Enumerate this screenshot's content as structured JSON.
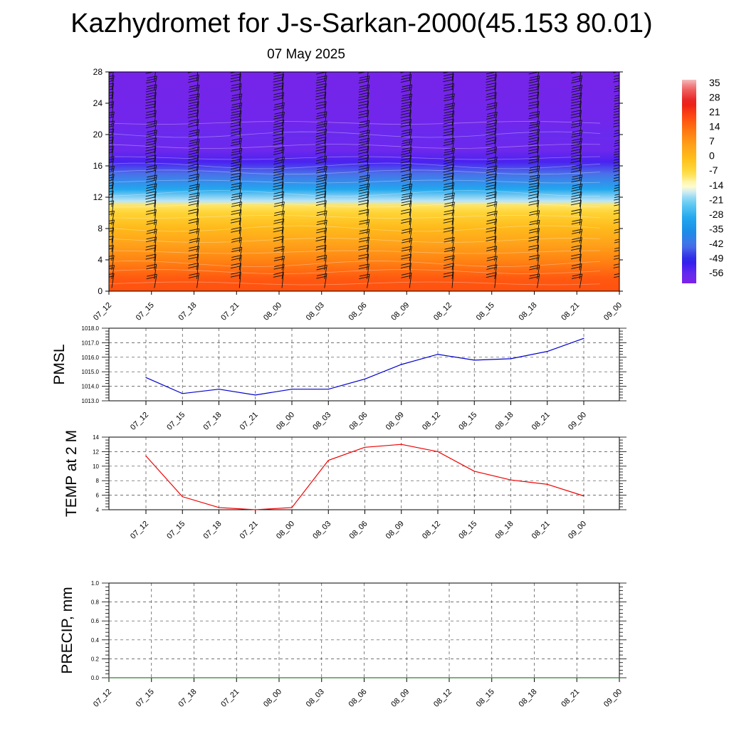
{
  "title": "Kazhydromet for J-s-Sarkan-2000(45.153 80.01)",
  "subtitle": "07 May 2025",
  "chart_data": [
    {
      "type": "heatmap",
      "name": "temperature-wind-cross-section",
      "x_ticks": [
        "07_12",
        "07_15",
        "07_18",
        "07_21",
        "08_00",
        "08_03",
        "08_06",
        "08_09",
        "08_12",
        "08_15",
        "08_18",
        "08_21",
        "09_00"
      ],
      "y_ticks": [
        0,
        4,
        8,
        12,
        16,
        20,
        24,
        28
      ],
      "ylim": [
        0,
        28
      ],
      "colorbar": {
        "labels": [
          "35",
          "28",
          "21",
          "14",
          "7",
          "0",
          "-7",
          "-14",
          "-21",
          "-28",
          "-35",
          "-42",
          "-49",
          "-56"
        ],
        "range": [
          -60,
          39
        ]
      },
      "temperature_profile": [
        {
          "level": 0,
          "value": 20
        },
        {
          "level": 1.5,
          "value": 19
        },
        {
          "level": 4,
          "value": 12
        },
        {
          "level": 6,
          "value": 7
        },
        {
          "level": 8,
          "value": 2
        },
        {
          "level": 10,
          "value": -4
        },
        {
          "level": 11,
          "value": -8
        },
        {
          "level": 11.5,
          "value": -16
        },
        {
          "level": 13,
          "value": -28
        },
        {
          "level": 15,
          "value": -42
        },
        {
          "level": 16.5,
          "value": -52
        },
        {
          "level": 18,
          "value": -57
        },
        {
          "level": 20,
          "value": -56
        },
        {
          "level": 22,
          "value": -58
        },
        {
          "level": 28,
          "value": -59
        }
      ],
      "wind_barbs": true
    },
    {
      "type": "line",
      "name": "pmsl",
      "ylabel": "PMSL",
      "categories": [
        "07_12",
        "07_15",
        "07_18",
        "07_21",
        "08_00",
        "08_03",
        "08_06",
        "08_09",
        "08_12",
        "08_15",
        "08_18",
        "08_21",
        "09_00"
      ],
      "values": [
        1014.6,
        1013.5,
        1013.8,
        1013.4,
        1013.8,
        1013.8,
        1014.5,
        1015.5,
        1016.2,
        1015.8,
        1015.9,
        1016.4,
        1017.3
      ],
      "ylim": [
        1013.0,
        1018.0
      ],
      "y_ticks": [
        "1013.0",
        "1014.0",
        "1015.0",
        "1016.0",
        "1017.0",
        "1018.0"
      ],
      "color": "#0000cc",
      "grid": true
    },
    {
      "type": "line",
      "name": "temp-2m",
      "ylabel": "TEMP at 2 M",
      "categories": [
        "07_12",
        "07_15",
        "07_18",
        "07_21",
        "08_00",
        "08_03",
        "08_06",
        "08_09",
        "08_12",
        "08_15",
        "08_18",
        "08_21",
        "09_00"
      ],
      "values": [
        11.4,
        5.8,
        4.3,
        4.0,
        4.3,
        10.8,
        12.6,
        13.0,
        12.0,
        9.3,
        8.1,
        7.5,
        5.9
      ],
      "ylim": [
        4,
        14
      ],
      "y_ticks": [
        "4",
        "6",
        "8",
        "10",
        "12",
        "14"
      ],
      "color": "#ee0000",
      "grid": true
    },
    {
      "type": "line",
      "name": "precip",
      "ylabel": "PRECIP, mm",
      "categories": [
        "07_12",
        "07_15",
        "07_18",
        "07_21",
        "08_00",
        "08_03",
        "08_06",
        "08_09",
        "08_12",
        "08_15",
        "08_18",
        "08_21",
        "09_00"
      ],
      "values": [
        0,
        0,
        0,
        0,
        0,
        0,
        0,
        0,
        0,
        0,
        0,
        0,
        0
      ],
      "ylim": [
        0,
        1.0
      ],
      "y_ticks": [
        "0.0",
        "0.2",
        "0.4",
        "0.6",
        "0.8",
        "1.0"
      ],
      "color": "#2e7d32",
      "grid": true
    }
  ]
}
